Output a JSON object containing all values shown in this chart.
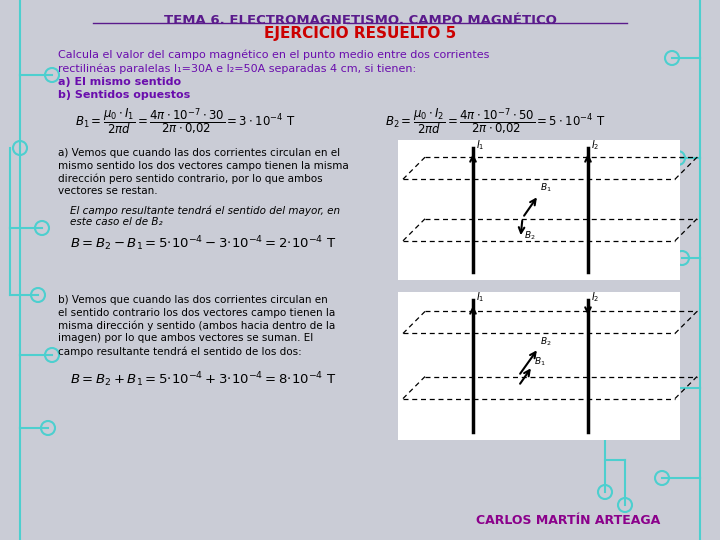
{
  "bg_color": "#caccd6",
  "title_line1": "TEMA 6. ELECTROMAGNETISMO. CAMPO MAGNÉTICO",
  "title_line2": "EJERCICIO RESUELTO 5",
  "title_color": "#5a1a8c",
  "title2_color": "#cc0000",
  "problem_lines": [
    "Calcula el valor del campo magnético en el punto medio entre dos corrientes",
    "rectilinéas paralelas I₁=30A e I₂=50A separadas 4 cm, si tienen:",
    "a) El mismo sentido",
    "b) Sentidos opuestos"
  ],
  "problem_color": "#6a0dad",
  "teal_color": "#4dcfcf",
  "author": "CARLOS MARTÍN ARTEAGA",
  "author_color": "#8b008b"
}
